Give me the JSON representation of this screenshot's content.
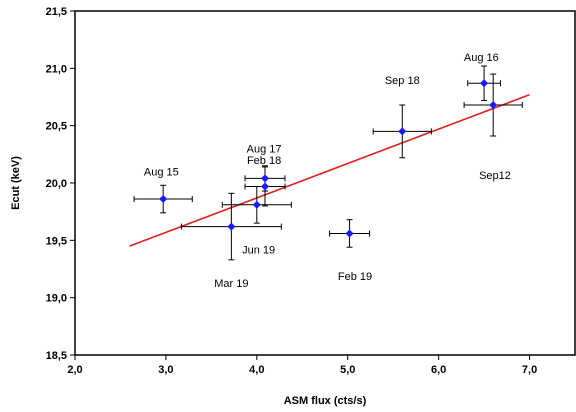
{
  "chart_data": {
    "type": "scatter",
    "xlabel": "ASM flux  (cts/s)",
    "ylabel": "Ecut (keV)",
    "xlim": [
      2.0,
      7.5
    ],
    "ylim": [
      18.5,
      21.5
    ],
    "x_ticks": [
      2.0,
      3.0,
      4.0,
      5.0,
      6.0,
      7.0
    ],
    "x_tick_labels": [
      "2,0",
      "3,0",
      "4,0",
      "5,0",
      "6,0",
      "7,0"
    ],
    "y_ticks": [
      18.5,
      19.0,
      19.5,
      20.0,
      20.5,
      21.0,
      21.5
    ],
    "y_tick_labels": [
      "18,5",
      "19,0",
      "19,5",
      "20,0",
      "20,5",
      "21,0",
      "21,5"
    ],
    "grid": false,
    "legend": "none",
    "marker_color": "#1a1aff",
    "errorbar_color": "#000000",
    "fit_color": "#dd2222",
    "points": [
      {
        "x": 2.97,
        "y": 19.86,
        "xerr": 0.32,
        "yerr": 0.12
      },
      {
        "x": 3.72,
        "y": 19.62,
        "xerr": 0.55,
        "yerr": 0.29
      },
      {
        "x": 4.0,
        "y": 19.81,
        "xerr": 0.38,
        "yerr": 0.16
      },
      {
        "x": 4.09,
        "y": 20.04,
        "xerr": 0.22,
        "yerr": 0.11
      },
      {
        "x": 4.09,
        "y": 19.97,
        "xerr": 0.22,
        "yerr": 0.17
      },
      {
        "x": 5.02,
        "y": 19.56,
        "xerr": 0.22,
        "yerr": 0.12
      },
      {
        "x": 5.6,
        "y": 20.45,
        "xerr": 0.32,
        "yerr": 0.23
      },
      {
        "x": 6.5,
        "y": 20.87,
        "xerr": 0.18,
        "yerr": 0.15
      },
      {
        "x": 6.6,
        "y": 20.68,
        "xerr": 0.32,
        "yerr": 0.27
      }
    ],
    "fit_line": {
      "x": [
        2.6,
        7.0
      ],
      "y": [
        19.45,
        20.77
      ]
    },
    "annotations": [
      {
        "text": "Aug 15",
        "x": 2.95,
        "y": 20.1
      },
      {
        "text": "Aug 17",
        "x": 4.08,
        "y": 20.3
      },
      {
        "text": "Feb 18",
        "x": 4.08,
        "y": 20.2
      },
      {
        "text": "Jun 19",
        "x": 4.02,
        "y": 19.42
      },
      {
        "text": "Mar 19",
        "x": 3.72,
        "y": 19.13
      },
      {
        "text": "Feb 19",
        "x": 5.08,
        "y": 19.19
      },
      {
        "text": "Sep 18",
        "x": 5.6,
        "y": 20.9
      },
      {
        "text": "Aug 16",
        "x": 6.47,
        "y": 21.1
      },
      {
        "text": "Sep12",
        "x": 6.62,
        "y": 20.07
      }
    ]
  }
}
